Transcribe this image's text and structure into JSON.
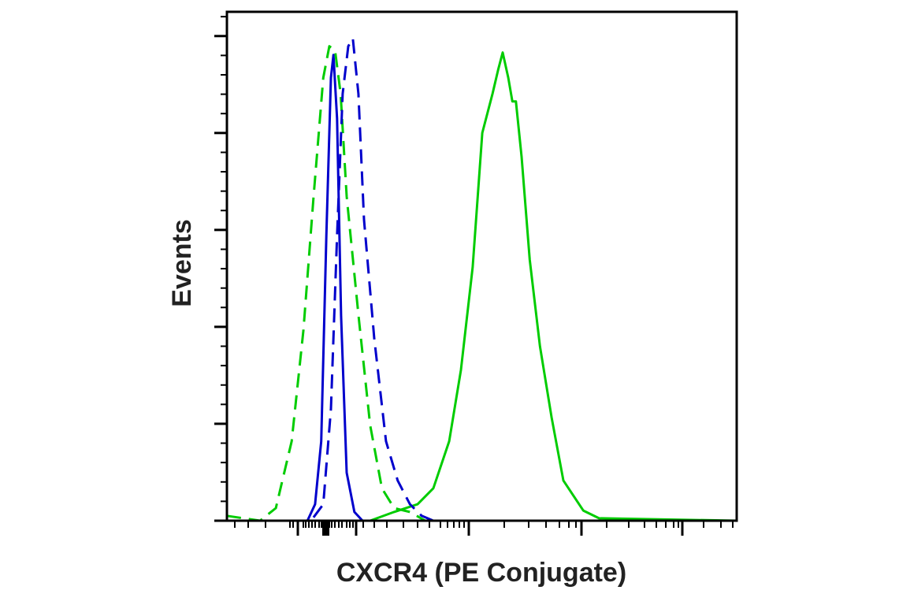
{
  "chart_data": {
    "type": "line",
    "title": "",
    "xlabel": "CXCR4 (PE Conjugate)",
    "ylabel": "Events",
    "x_scale": "biexponential (no tick labels)",
    "y_scale": "linear (no tick labels)",
    "xlim": [
      0,
      1000
    ],
    "ylim": [
      0,
      105
    ],
    "grid": false,
    "legend": "none",
    "series": [
      {
        "color": "#00cc00",
        "style": "solid",
        "x": [
          0,
          281,
          328,
          374,
          405,
          436,
          459,
          482,
          501,
          521,
          532,
          541,
          552,
          560,
          567,
          578,
          594,
          614,
          637,
          660,
          699,
          730,
          1000
        ],
        "y": [
          0,
          0,
          1.8,
          3.4,
          6.7,
          16.4,
          31.1,
          52.3,
          80,
          88.1,
          93,
          96.6,
          91.4,
          86.5,
          86.5,
          75.1,
          53.9,
          36,
          21.3,
          8.3,
          2.1,
          0.5,
          0
        ]
      },
      {
        "color": "#0000cc",
        "style": "solid",
        "x": [
          0,
          158,
          173,
          185,
          195,
          204,
          209,
          216,
          224,
          235,
          250,
          266,
          1000
        ],
        "y": [
          0,
          0,
          3.4,
          16.4,
          58.8,
          91.4,
          96.1,
          83,
          42.3,
          9.9,
          1.8,
          0,
          0
        ]
      },
      {
        "color": "#00cc00",
        "style": "dashed",
        "x": [
          0,
          65,
          96,
          127,
          150,
          170,
          189,
          201,
          212,
          223,
          235,
          258,
          281,
          304,
          328,
          359,
          389,
          1000
        ],
        "y": [
          1,
          0,
          2.6,
          16.4,
          39.3,
          66.9,
          91.4,
          97.9,
          97.1,
          88.1,
          66.9,
          42.5,
          19.7,
          6.7,
          2.6,
          1.8,
          0,
          0
        ]
      },
      {
        "color": "#0000cc",
        "style": "dashed",
        "x": [
          0,
          165,
          189,
          204,
          216,
          227,
          238,
          247,
          258,
          269,
          289,
          312,
          335,
          359,
          382,
          405,
          1000
        ],
        "y": [
          0,
          0,
          3.4,
          23,
          58.8,
          88.1,
          97.9,
          99.5,
          88.1,
          62.1,
          37.6,
          16.4,
          8.3,
          3.4,
          1,
          0,
          0
        ]
      }
    ]
  }
}
